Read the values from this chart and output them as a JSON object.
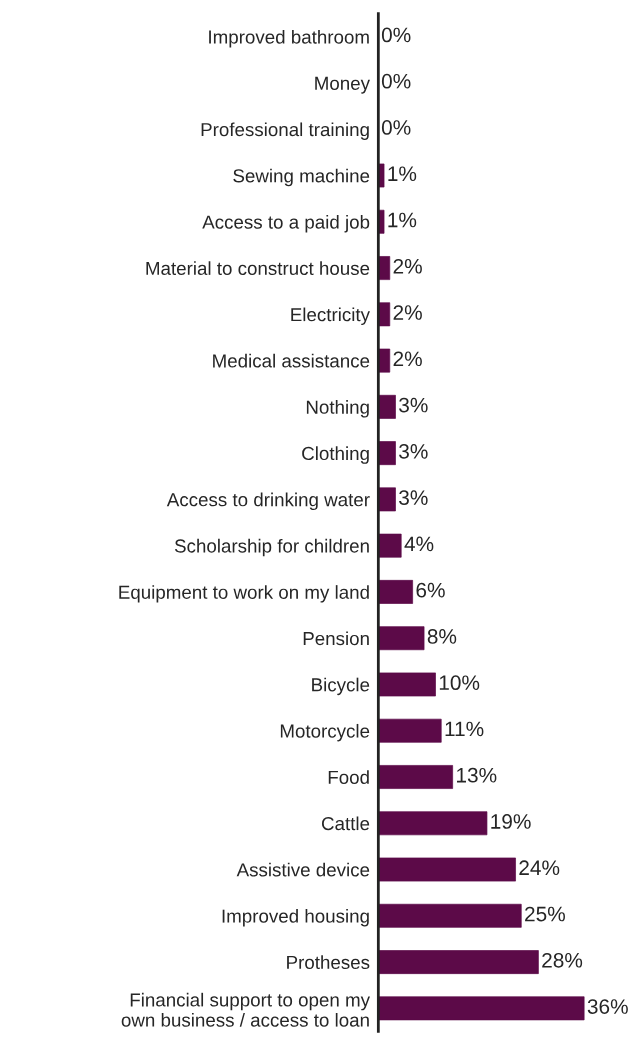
{
  "chart_data": {
    "type": "bar",
    "orientation": "horizontal",
    "categories": [
      "Improved bathroom",
      "Money",
      "Professional training",
      "Sewing machine",
      "Access to a paid job",
      "Material to construct house",
      "Electricity",
      "Medical assistance",
      "Nothing",
      "Clothing",
      "Access to drinking water",
      "Scholarship for children",
      "Equipment to work on my land",
      "Pension",
      "Bicycle",
      "Motorcycle",
      "Food",
      "Cattle",
      "Assistive device",
      "Improved housing",
      "Protheses",
      "Financial support to open my\nown business / access to loan"
    ],
    "values": [
      0,
      0,
      0,
      1,
      1,
      2,
      2,
      2,
      3,
      3,
      3,
      4,
      6,
      8,
      10,
      11,
      13,
      19,
      24,
      25,
      28,
      36
    ],
    "value_labels": [
      "0%",
      "0%",
      "0%",
      "1%",
      "1%",
      "2%",
      "2%",
      "2%",
      "3%",
      "3%",
      "3%",
      "4%",
      "6%",
      "8%",
      "10%",
      "11%",
      "13%",
      "19%",
      "24%",
      "25%",
      "28%",
      "36%"
    ],
    "color": "#5c0a48",
    "grid": false,
    "legend": false
  }
}
